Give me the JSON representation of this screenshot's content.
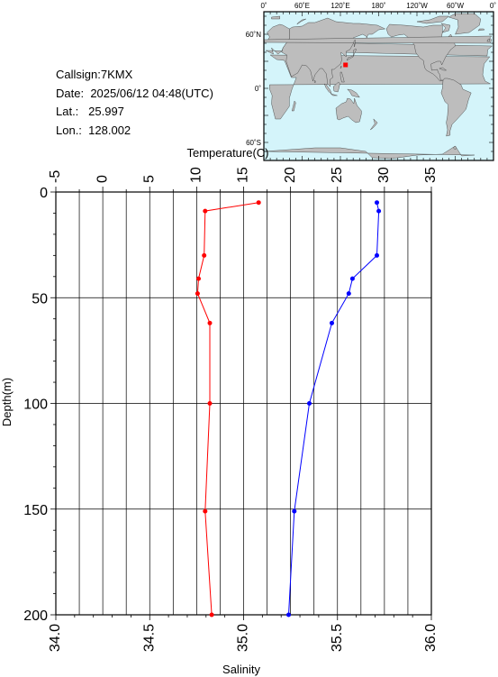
{
  "station": {
    "callsign_label": "Callsign:",
    "callsign": "7KMX",
    "date_label": "Date:",
    "date": "2025/06/12 04:48(UTC)",
    "lat_label": "Lat.:",
    "lat": "25.997",
    "lon_label": "Lon.:",
    "lon": "128.002"
  },
  "map": {
    "top_labels": [
      "0˚",
      "60˚E",
      "120˚E",
      "180˚",
      "120˚W",
      "60˚W",
      "0˚"
    ],
    "side_labels": [
      "60˚N",
      "0˚",
      "60˚S"
    ],
    "ocean_color": "#d4f4fa",
    "land_color": "#bdbdbd",
    "marker_color": "#ff0000",
    "marker": {
      "lon": 128.002,
      "lat": 25.997
    }
  },
  "chart_data": {
    "type": "line",
    "xlabel_top": "Temperature(C)",
    "xlabel_bottom": "Salinity",
    "ylabel": "Depth(m)",
    "temperature_ticks": [
      "-5",
      "0",
      "5",
      "10",
      "15",
      "20",
      "25",
      "30",
      "35"
    ],
    "salinity_ticks": [
      "34.0",
      "34.5",
      "35.0",
      "35.5",
      "36.0"
    ],
    "depth_ticks": [
      "0",
      "50",
      "100",
      "150",
      "200"
    ],
    "temperature_range": [
      -5,
      35
    ],
    "salinity_range": [
      34.0,
      36.0
    ],
    "depth_range": [
      0,
      200
    ],
    "grid": true,
    "series": [
      {
        "color": "#ff0000",
        "axis": "temperature",
        "points": [
          [
            16.6,
            5
          ],
          [
            10.9,
            9
          ],
          [
            10.8,
            30
          ],
          [
            10.2,
            41
          ],
          [
            10.1,
            48
          ],
          [
            11.4,
            62
          ],
          [
            11.4,
            100
          ],
          [
            10.9,
            151
          ],
          [
            11.6,
            200
          ]
        ]
      },
      {
        "color": "#0000ff",
        "axis": "salinity",
        "points": [
          [
            35.71,
            5
          ],
          [
            35.72,
            9
          ],
          [
            35.71,
            30
          ],
          [
            35.58,
            41
          ],
          [
            35.56,
            48
          ],
          [
            35.47,
            62
          ],
          [
            35.35,
            100
          ],
          [
            35.27,
            151
          ],
          [
            35.24,
            200
          ]
        ]
      }
    ]
  }
}
